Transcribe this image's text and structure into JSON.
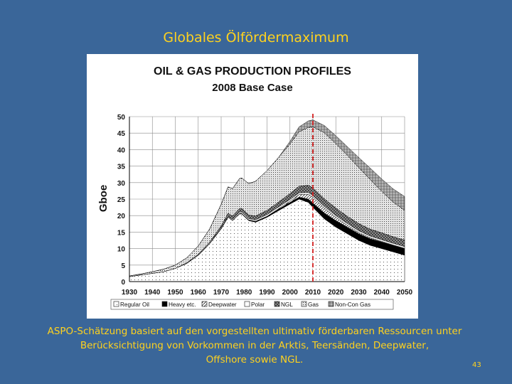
{
  "slide": {
    "title": "Globales Ölfördermaximum",
    "caption_lines": [
      "ASPO-Schätzung basiert auf den vorgestellten ultimativ förderbaren Ressourcen  unter",
      "Berücksichtigung von Vorkommen in der Arktis, Teersänden, Deepwater,",
      "Offshore sowie NGL."
    ],
    "page_number": "43"
  },
  "colors": {
    "background": "#3A6699",
    "text_accent": "#FFD21E",
    "marker_line": "#D42020"
  },
  "chart_data": {
    "type": "area",
    "title": "OIL & GAS PRODUCTION PROFILES",
    "subtitle": "2008 Base Case",
    "ylabel": "Gboe",
    "xlabel": "",
    "xlim": [
      1930,
      2050
    ],
    "ylim": [
      0,
      50
    ],
    "xticks": [
      1930,
      1940,
      1950,
      1960,
      1970,
      1980,
      1990,
      2000,
      2010,
      2020,
      2030,
      2040,
      2050
    ],
    "yticks": [
      0,
      5,
      10,
      15,
      20,
      25,
      30,
      35,
      40,
      45,
      50
    ],
    "grid": true,
    "legend_position": "bottom",
    "marker_year": 2010,
    "x": [
      1930,
      1935,
      1940,
      1945,
      1950,
      1955,
      1960,
      1965,
      1970,
      1973,
      1975,
      1978,
      1979,
      1982,
      1985,
      1990,
      1995,
      2000,
      2004,
      2008,
      2010,
      2015,
      2020,
      2025,
      2030,
      2035,
      2040,
      2045,
      2050
    ],
    "series": [
      {
        "name": "Regular Oil",
        "pattern": "dots-sparse",
        "values": [
          1.5,
          2.0,
          2.5,
          3.0,
          4.0,
          5.5,
          8.0,
          11.5,
          16.0,
          19.5,
          18.5,
          20.5,
          20.5,
          18.5,
          18.0,
          19.5,
          21.5,
          23.5,
          25.0,
          24.0,
          22.5,
          19.0,
          16.5,
          14.5,
          12.5,
          11.0,
          10.0,
          9.0,
          8.0
        ]
      },
      {
        "name": "Heavy etc.",
        "pattern": "solid-black",
        "values": [
          0,
          0,
          0,
          0,
          0,
          0,
          0,
          0,
          0,
          0,
          0.1,
          0.2,
          0.2,
          0.2,
          0.3,
          0.3,
          0.4,
          0.5,
          0.6,
          1.0,
          1.3,
          1.8,
          2.0,
          2.0,
          2.0,
          2.0,
          2.0,
          2.0,
          2.0
        ]
      },
      {
        "name": "Deepwater",
        "pattern": "hatch-diagonal",
        "values": [
          0,
          0,
          0,
          0,
          0,
          0,
          0,
          0,
          0,
          0,
          0,
          0,
          0,
          0,
          0,
          0,
          0.2,
          0.4,
          0.8,
          1.5,
          1.8,
          1.5,
          1.0,
          0.6,
          0.4,
          0.3,
          0.2,
          0.1,
          0.1
        ]
      },
      {
        "name": "Polar",
        "pattern": "blank",
        "values": [
          0,
          0,
          0,
          0,
          0,
          0,
          0,
          0,
          0.1,
          0.2,
          0.3,
          0.4,
          0.4,
          0.4,
          0.4,
          0.5,
          0.5,
          0.5,
          0.5,
          0.5,
          0.5,
          0.5,
          0.5,
          0.5,
          0.5,
          0.5,
          0.5,
          0.5,
          0.5
        ]
      },
      {
        "name": "NGL",
        "pattern": "crosshatch",
        "values": [
          0,
          0,
          0,
          0,
          0,
          0.2,
          0.3,
          0.5,
          0.8,
          1.0,
          1.0,
          1.1,
          1.1,
          1.1,
          1.2,
          1.3,
          1.5,
          1.8,
          2.0,
          2.2,
          2.3,
          2.3,
          2.3,
          2.2,
          2.2,
          2.1,
          2.1,
          2.0,
          2.0
        ]
      },
      {
        "name": "Gas",
        "pattern": "dots-dense",
        "values": [
          0.2,
          0.3,
          0.5,
          0.8,
          1.0,
          1.5,
          2.5,
          4.0,
          6.5,
          8.0,
          8.3,
          9.0,
          9.2,
          9.5,
          10.5,
          12.0,
          13.5,
          15.0,
          16.5,
          17.5,
          18.5,
          20.0,
          19.5,
          18.5,
          17.0,
          15.0,
          12.5,
          10.5,
          9.0
        ]
      },
      {
        "name": "Non-Con Gas",
        "pattern": "hatch-grid",
        "values": [
          0,
          0,
          0,
          0,
          0,
          0,
          0,
          0,
          0,
          0,
          0,
          0,
          0,
          0,
          0,
          0,
          0,
          0.8,
          1.5,
          2.0,
          2.1,
          2.2,
          2.4,
          2.6,
          3.0,
          3.5,
          3.8,
          4.0,
          4.2
        ]
      }
    ]
  }
}
